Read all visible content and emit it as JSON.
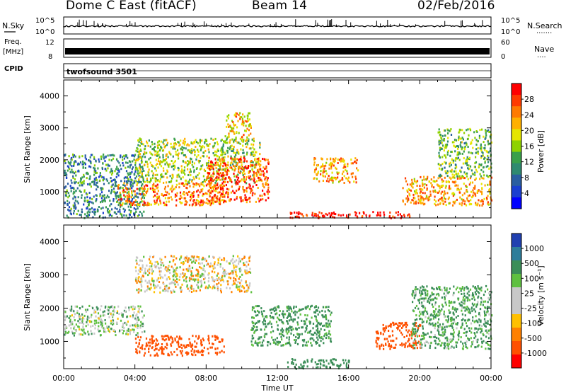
{
  "header": {
    "station": "Dome C East (fitACF)",
    "beam": "Beam 14",
    "date": "02/Feb/2016"
  },
  "aux_panels": {
    "nsky_label": "N.Sky",
    "nsearch_label": "N.Search",
    "nsearch_dots": ".......",
    "nsky_ticks": [
      "10^5",
      "10^0"
    ],
    "freq_label_1": "Freq.",
    "freq_label_2": "[MHz]",
    "freq_ticks": [
      "12",
      "8"
    ],
    "nave_label": "Nave",
    "nave_dots": "....",
    "nave_ticks": [
      "60",
      "0"
    ],
    "cpid_label": "CPID",
    "cpid_value": "twofsound 3501"
  },
  "x_axis": {
    "label": "Time UT",
    "ticks": [
      "00:00",
      "04:00",
      "08:00",
      "12:00",
      "16:00",
      "20:00",
      "00:00"
    ]
  },
  "power_colorbar": {
    "label": "Power [dB]",
    "ticks": [
      "28",
      "24",
      "20",
      "16",
      "12",
      "8",
      "4"
    ],
    "colors": [
      "#ff0000",
      "#ff3a00",
      "#ff7a00",
      "#ffb000",
      "#e6e600",
      "#8ed200",
      "#3aa04a",
      "#2f8a70",
      "#2a5ea0",
      "#1a3fd0",
      "#0000ff"
    ]
  },
  "velocity_colorbar": {
    "label": "Velocity [m s⁻¹]",
    "ticks": [
      "1000",
      "500",
      "100",
      "25",
      "-25",
      "-100",
      "-500",
      "-1000"
    ],
    "colors": [
      "#2040b0",
      "#2e7d9a",
      "#3b8e58",
      "#5fc040",
      "#c8c8c8",
      "#c8c8c8",
      "#ffc000",
      "#ff8000",
      "#ff5000",
      "#ff0000"
    ]
  },
  "chart_data": [
    {
      "type": "heatmap",
      "title": "Power",
      "xlabel": "Time UT",
      "ylabel": "Slant Range [km]",
      "xlim": [
        0,
        24
      ],
      "ylim": [
        180,
        4500
      ],
      "yticks": [
        1000,
        2000,
        3000,
        4000
      ],
      "colorbar": {
        "label": "Power [dB]",
        "range": [
          0,
          31
        ],
        "ticks": [
          28,
          24,
          20,
          16,
          12,
          8,
          4
        ]
      },
      "echo_regions": [
        {
          "t": [
            0.0,
            4.5
          ],
          "range_km": [
            200,
            2200
          ],
          "power_db": 10
        },
        {
          "t": [
            3.0,
            9.0
          ],
          "range_km": [
            600,
            1300
          ],
          "power_db": 24
        },
        {
          "t": [
            4.0,
            11.0
          ],
          "range_km": [
            1300,
            2700
          ],
          "power_db": 16
        },
        {
          "t": [
            8.0,
            11.5
          ],
          "range_km": [
            700,
            2100
          ],
          "power_db": 26
        },
        {
          "t": [
            9.0,
            10.5
          ],
          "range_km": [
            2700,
            3500
          ],
          "power_db": 20
        },
        {
          "t": [
            12.5,
            19.5
          ],
          "range_km": [
            200,
            400
          ],
          "power_db": 30
        },
        {
          "t": [
            14.0,
            16.5
          ],
          "range_km": [
            1300,
            2100
          ],
          "power_db": 22
        },
        {
          "t": [
            19.0,
            24.0
          ],
          "range_km": [
            600,
            1500
          ],
          "power_db": 22
        },
        {
          "t": [
            21.0,
            24.0
          ],
          "range_km": [
            1500,
            3000
          ],
          "power_db": 14
        }
      ]
    },
    {
      "type": "heatmap",
      "title": "Velocity",
      "xlabel": "Time UT",
      "ylabel": "Slant Range [km]",
      "xlim": [
        0,
        24
      ],
      "ylim": [
        180,
        4500
      ],
      "yticks": [
        1000,
        2000,
        3000,
        4000
      ],
      "colorbar": {
        "label": "Velocity [m s⁻¹]",
        "ticks": [
          1000,
          500,
          100,
          25,
          -25,
          -100,
          -500,
          -1000
        ]
      },
      "echo_regions": [
        {
          "t": [
            0.0,
            4.5
          ],
          "range_km": [
            1200,
            2100
          ],
          "velocity": 50
        },
        {
          "t": [
            4.0,
            9.0
          ],
          "range_km": [
            600,
            1200
          ],
          "velocity": -300
        },
        {
          "t": [
            4.0,
            10.5
          ],
          "range_km": [
            2500,
            3600
          ],
          "velocity": 0
        },
        {
          "t": [
            10.5,
            15.0
          ],
          "range_km": [
            900,
            2100
          ],
          "velocity": 150
        },
        {
          "t": [
            12.5,
            16.0
          ],
          "range_km": [
            200,
            500
          ],
          "velocity": 200
        },
        {
          "t": [
            17.5,
            20.0
          ],
          "range_km": [
            800,
            1600
          ],
          "velocity": -200
        },
        {
          "t": [
            19.5,
            24.0
          ],
          "range_km": [
            800,
            2700
          ],
          "velocity": 120
        }
      ]
    }
  ]
}
